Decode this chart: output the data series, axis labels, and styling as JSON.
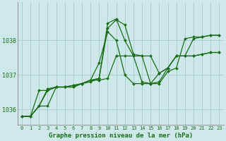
{
  "bg_color": "#cce8e8",
  "grid_color": "#aacccc",
  "line_color": "#1a6e1a",
  "marker_color": "#1a6e1a",
  "xlabel": "Graphe pression niveau de la mer (hPa)",
  "xlabel_color": "#1a6e1a",
  "ylabel_ticks": [
    1036,
    1037,
    1038
  ],
  "xlim": [
    -0.5,
    23.5
  ],
  "ylim": [
    1035.55,
    1039.1
  ],
  "series": [
    {
      "x": [
        0,
        1,
        2,
        3,
        4,
        5,
        6,
        7,
        8,
        9,
        10,
        11,
        12,
        13,
        14,
        15,
        16,
        17,
        18,
        19,
        20,
        21,
        22,
        23
      ],
      "y": [
        1035.8,
        1035.8,
        1036.1,
        1036.6,
        1036.65,
        1036.65,
        1036.7,
        1036.75,
        1036.8,
        1036.9,
        1038.35,
        1038.6,
        1038.45,
        1037.6,
        1037.55,
        1036.75,
        1036.75,
        1037.1,
        1037.2,
        1038.05,
        1038.1,
        1038.1,
        1038.15,
        1038.15
      ],
      "linestyle": "-",
      "marker": true
    },
    {
      "x": [
        0,
        1,
        2,
        3,
        4,
        5,
        6,
        7,
        8,
        9,
        10,
        11,
        12,
        13,
        14,
        15,
        16,
        17,
        18,
        19,
        20,
        21,
        22,
        23
      ],
      "y": [
        1035.8,
        1035.8,
        1036.1,
        1036.1,
        1036.65,
        1036.65,
        1036.65,
        1036.75,
        1036.85,
        1036.9,
        1038.5,
        1038.62,
        1038.0,
        1037.55,
        1036.8,
        1036.75,
        1037.05,
        1037.2,
        1037.55,
        1037.55,
        1037.55,
        1037.6,
        1037.65,
        1037.65
      ],
      "linestyle": "-",
      "marker": true
    },
    {
      "x": [
        0,
        1,
        2,
        3,
        4,
        5,
        6,
        7,
        8,
        9,
        10,
        11,
        12,
        13,
        14,
        15,
        16,
        17,
        18,
        19,
        20,
        21,
        22,
        23
      ],
      "y": [
        1035.8,
        1035.8,
        1036.1,
        1036.55,
        1036.65,
        1036.65,
        1036.65,
        1036.75,
        1036.85,
        1037.35,
        1038.25,
        1038.0,
        1037.0,
        1036.75,
        1036.75,
        1036.75,
        1036.8,
        1037.2,
        1037.55,
        1037.55,
        1037.55,
        1037.6,
        1037.65,
        1037.65
      ],
      "linestyle": "-",
      "marker": true
    },
    {
      "x": [
        0,
        1,
        2,
        3,
        4,
        5,
        6,
        7,
        8,
        9,
        10,
        11,
        12,
        13,
        14,
        15,
        16,
        17,
        18,
        19,
        20,
        21,
        22,
        23
      ],
      "y": [
        1035.8,
        1035.8,
        1036.55,
        1036.55,
        1036.65,
        1036.65,
        1036.7,
        1036.75,
        1036.85,
        1036.85,
        1036.9,
        1037.55,
        1037.55,
        1037.55,
        1037.55,
        1037.55,
        1037.05,
        1037.2,
        1037.55,
        1037.55,
        1038.05,
        1038.1,
        1038.15,
        1038.15
      ],
      "linestyle": "-",
      "marker": true
    }
  ],
  "marker_size": 2.0,
  "line_width": 0.9,
  "tick_fontsize": 5.0,
  "xlabel_fontsize": 6.5
}
